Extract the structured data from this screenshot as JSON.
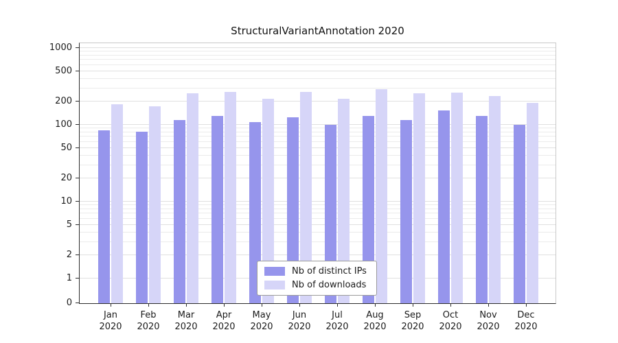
{
  "chart_data": {
    "type": "bar",
    "title": "StructuralVariantAnnotation 2020",
    "year": "2020",
    "scale": "symlog",
    "grid": true,
    "legend_position": "lower-center",
    "categories": [
      "Jan",
      "Feb",
      "Mar",
      "Apr",
      "May",
      "Jun",
      "Jul",
      "Aug",
      "Sep",
      "Oct",
      "Nov",
      "Dec"
    ],
    "series": [
      {
        "name": "Nb of distinct IPs",
        "color": "#9695ec",
        "values": [
          85,
          82,
          115,
          130,
          108,
          126,
          100,
          131,
          115,
          155,
          130,
          100
        ]
      },
      {
        "name": "Nb of downloads",
        "color": "#d6d5f8",
        "values": [
          185,
          175,
          260,
          266,
          220,
          270,
          220,
          290,
          258,
          263,
          238,
          195
        ]
      }
    ],
    "yticks": [
      0,
      1,
      2,
      5,
      10,
      20,
      50,
      100,
      200,
      500,
      1000
    ],
    "ylim": [
      0,
      1100
    ],
    "xlabel": "",
    "ylabel": ""
  }
}
